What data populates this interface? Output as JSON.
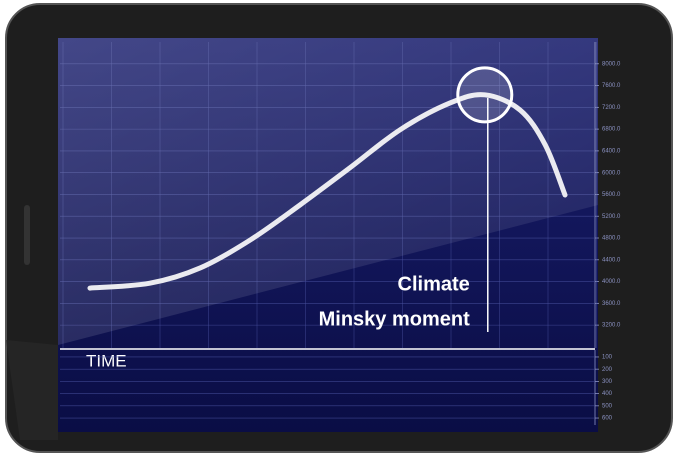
{
  "chart_data": [
    {
      "type": "line",
      "x_label": "TIME",
      "annotation": {
        "x": 79.4,
        "lines": [
          "Climate",
          "Minsky moment"
        ]
      },
      "x": [
        5.6,
        16.8,
        26.2,
        35.5,
        44.9,
        54.2,
        63.6,
        72.9,
        79.4,
        86,
        90.7,
        94.4
      ],
      "values": [
        3880,
        3970,
        4250,
        4760,
        5410,
        6090,
        6790,
        7280,
        7430,
        7150,
        6510,
        5590
      ],
      "color": "#e8e8ee",
      "xlim": [
        0,
        100
      ],
      "ylim": [
        2780,
        8400
      ],
      "yticks": [
        {
          "value": 3200,
          "label": "3200.0"
        },
        {
          "value": 3600,
          "label": "3600.0"
        },
        {
          "value": 4000,
          "label": "4000.0"
        },
        {
          "value": 4400,
          "label": "4400.0"
        },
        {
          "value": 4800,
          "label": "4800.0"
        },
        {
          "value": 5200,
          "label": "5200.0"
        },
        {
          "value": 5600,
          "label": "5600.0"
        },
        {
          "value": 6000,
          "label": "6000.0"
        },
        {
          "value": 6400,
          "label": "6400.0"
        },
        {
          "value": 6800,
          "label": "6800.0"
        },
        {
          "value": 7200,
          "label": "7200.0"
        },
        {
          "value": 7600,
          "label": "7600.0"
        },
        {
          "value": 8000,
          "label": "8000.0"
        }
      ],
      "grid": true
    },
    {
      "type": "panel",
      "ylim": [
        657,
        43
      ],
      "yticks": [
        100,
        200,
        300,
        400,
        500,
        600
      ],
      "grid": true
    }
  ]
}
